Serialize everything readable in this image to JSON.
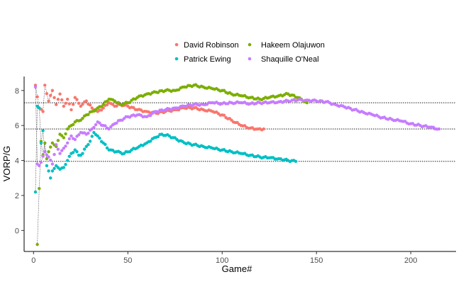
{
  "chart_data": {
    "type": "scatter",
    "xlabel": "Game#",
    "ylabel": "VORP/G",
    "xlim": [
      -5,
      224
    ],
    "ylim": [
      -1.2,
      8.8
    ],
    "x_ticks": [
      0,
      50,
      100,
      150,
      200
    ],
    "y_ticks": [
      0,
      2,
      4,
      6,
      8
    ],
    "hlines": [
      7.3,
      5.8,
      3.95
    ],
    "legend_position": "top",
    "series": [
      {
        "name": "David Robinson",
        "color": "#F8766D",
        "points": [
          [
            1,
            8.3
          ],
          [
            3,
            7.0
          ],
          [
            5,
            6.8
          ],
          [
            6,
            8.3
          ],
          [
            8,
            7.4
          ],
          [
            10,
            8.0
          ],
          [
            12,
            7.2
          ],
          [
            14,
            7.8
          ],
          [
            16,
            7.1
          ],
          [
            18,
            7.5
          ],
          [
            20,
            6.9
          ],
          [
            22,
            7.6
          ],
          [
            25,
            7.1
          ],
          [
            28,
            7.4
          ],
          [
            31,
            7.0
          ],
          [
            34,
            6.8
          ],
          [
            37,
            7.0
          ],
          [
            40,
            7.3
          ],
          [
            43,
            7.1
          ],
          [
            46,
            7.2
          ],
          [
            50,
            7.1
          ],
          [
            55,
            6.9
          ],
          [
            60,
            6.8
          ],
          [
            65,
            6.7
          ],
          [
            70,
            6.8
          ],
          [
            75,
            6.9
          ],
          [
            80,
            7.0
          ],
          [
            85,
            7.0
          ],
          [
            90,
            6.9
          ],
          [
            95,
            6.8
          ],
          [
            100,
            6.6
          ],
          [
            105,
            6.3
          ],
          [
            110,
            6.0
          ],
          [
            115,
            5.85
          ],
          [
            119,
            5.8
          ],
          [
            122,
            5.8
          ]
        ]
      },
      {
        "name": "Hakeem Olajuwon",
        "color": "#7CAE00",
        "points": [
          [
            2,
            -0.8
          ],
          [
            3,
            2.4
          ],
          [
            4,
            5.1
          ],
          [
            5,
            4.3
          ],
          [
            6,
            5.0
          ],
          [
            7,
            4.1
          ],
          [
            8,
            4.5
          ],
          [
            10,
            5.0
          ],
          [
            12,
            4.8
          ],
          [
            14,
            5.5
          ],
          [
            16,
            5.3
          ],
          [
            18,
            5.8
          ],
          [
            20,
            6.0
          ],
          [
            22,
            6.2
          ],
          [
            25,
            6.3
          ],
          [
            28,
            6.6
          ],
          [
            31,
            6.8
          ],
          [
            34,
            7.0
          ],
          [
            37,
            7.2
          ],
          [
            40,
            7.5
          ],
          [
            43,
            7.4
          ],
          [
            46,
            7.2
          ],
          [
            50,
            7.3
          ],
          [
            55,
            7.6
          ],
          [
            60,
            7.8
          ],
          [
            65,
            7.9
          ],
          [
            70,
            8.0
          ],
          [
            75,
            8.0
          ],
          [
            80,
            8.2
          ],
          [
            85,
            8.3
          ],
          [
            90,
            8.2
          ],
          [
            95,
            8.1
          ],
          [
            100,
            8.0
          ],
          [
            105,
            7.8
          ],
          [
            110,
            7.7
          ],
          [
            115,
            7.6
          ],
          [
            120,
            7.5
          ],
          [
            125,
            7.6
          ],
          [
            130,
            7.7
          ],
          [
            135,
            7.8
          ],
          [
            140,
            7.6
          ],
          [
            145,
            7.3
          ]
        ]
      },
      {
        "name": "Patrick Ewing",
        "color": "#00BFC4",
        "points": [
          [
            1,
            2.2
          ],
          [
            2,
            7.1
          ],
          [
            3,
            7.0
          ],
          [
            4,
            5.0
          ],
          [
            5,
            5.7
          ],
          [
            6,
            4.5
          ],
          [
            7,
            3.7
          ],
          [
            8,
            3.4
          ],
          [
            9,
            3.0
          ],
          [
            10,
            3.4
          ],
          [
            12,
            3.7
          ],
          [
            14,
            3.5
          ],
          [
            16,
            3.6
          ],
          [
            18,
            4.0
          ],
          [
            20,
            4.4
          ],
          [
            22,
            4.6
          ],
          [
            24,
            4.3
          ],
          [
            26,
            4.4
          ],
          [
            28,
            4.8
          ],
          [
            30,
            5.1
          ],
          [
            32,
            5.6
          ],
          [
            34,
            5.4
          ],
          [
            37,
            5.0
          ],
          [
            40,
            4.6
          ],
          [
            44,
            4.5
          ],
          [
            48,
            4.4
          ],
          [
            52,
            4.6
          ],
          [
            56,
            4.8
          ],
          [
            60,
            5.0
          ],
          [
            64,
            5.3
          ],
          [
            68,
            5.5
          ],
          [
            72,
            5.4
          ],
          [
            76,
            5.2
          ],
          [
            80,
            5.0
          ],
          [
            85,
            4.9
          ],
          [
            90,
            4.8
          ],
          [
            95,
            4.7
          ],
          [
            100,
            4.6
          ],
          [
            105,
            4.5
          ],
          [
            110,
            4.4
          ],
          [
            115,
            4.3
          ],
          [
            120,
            4.2
          ],
          [
            125,
            4.15
          ],
          [
            130,
            4.1
          ],
          [
            135,
            4.0
          ],
          [
            139,
            3.95
          ]
        ]
      },
      {
        "name": "Shaquille O'Neal",
        "color": "#C77CFF",
        "points": [
          [
            1,
            8.2
          ],
          [
            2,
            3.8
          ],
          [
            3,
            3.7
          ],
          [
            4,
            3.9
          ],
          [
            6,
            4.5
          ],
          [
            8,
            4.2
          ],
          [
            10,
            3.8
          ],
          [
            12,
            4.9
          ],
          [
            14,
            4.4
          ],
          [
            16,
            4.7
          ],
          [
            18,
            5.0
          ],
          [
            20,
            5.4
          ],
          [
            22,
            5.2
          ],
          [
            25,
            5.6
          ],
          [
            28,
            5.5
          ],
          [
            31,
            5.8
          ],
          [
            34,
            6.2
          ],
          [
            37,
            6.0
          ],
          [
            40,
            5.8
          ],
          [
            43,
            6.1
          ],
          [
            46,
            6.3
          ],
          [
            50,
            6.5
          ],
          [
            55,
            6.6
          ],
          [
            60,
            6.5
          ],
          [
            65,
            6.8
          ],
          [
            70,
            6.9
          ],
          [
            75,
            7.0
          ],
          [
            80,
            7.1
          ],
          [
            85,
            7.2
          ],
          [
            90,
            7.2
          ],
          [
            95,
            7.3
          ],
          [
            100,
            7.25
          ],
          [
            105,
            7.3
          ],
          [
            110,
            7.3
          ],
          [
            115,
            7.25
          ],
          [
            120,
            7.3
          ],
          [
            125,
            7.3
          ],
          [
            130,
            7.35
          ],
          [
            135,
            7.4
          ],
          [
            140,
            7.45
          ],
          [
            145,
            7.45
          ],
          [
            150,
            7.4
          ],
          [
            155,
            7.35
          ],
          [
            160,
            7.2
          ],
          [
            165,
            7.05
          ],
          [
            170,
            6.9
          ],
          [
            175,
            6.75
          ],
          [
            180,
            6.6
          ],
          [
            185,
            6.45
          ],
          [
            190,
            6.35
          ],
          [
            195,
            6.25
          ],
          [
            200,
            6.1
          ],
          [
            205,
            6.0
          ],
          [
            210,
            5.9
          ],
          [
            215,
            5.8
          ]
        ]
      }
    ]
  }
}
